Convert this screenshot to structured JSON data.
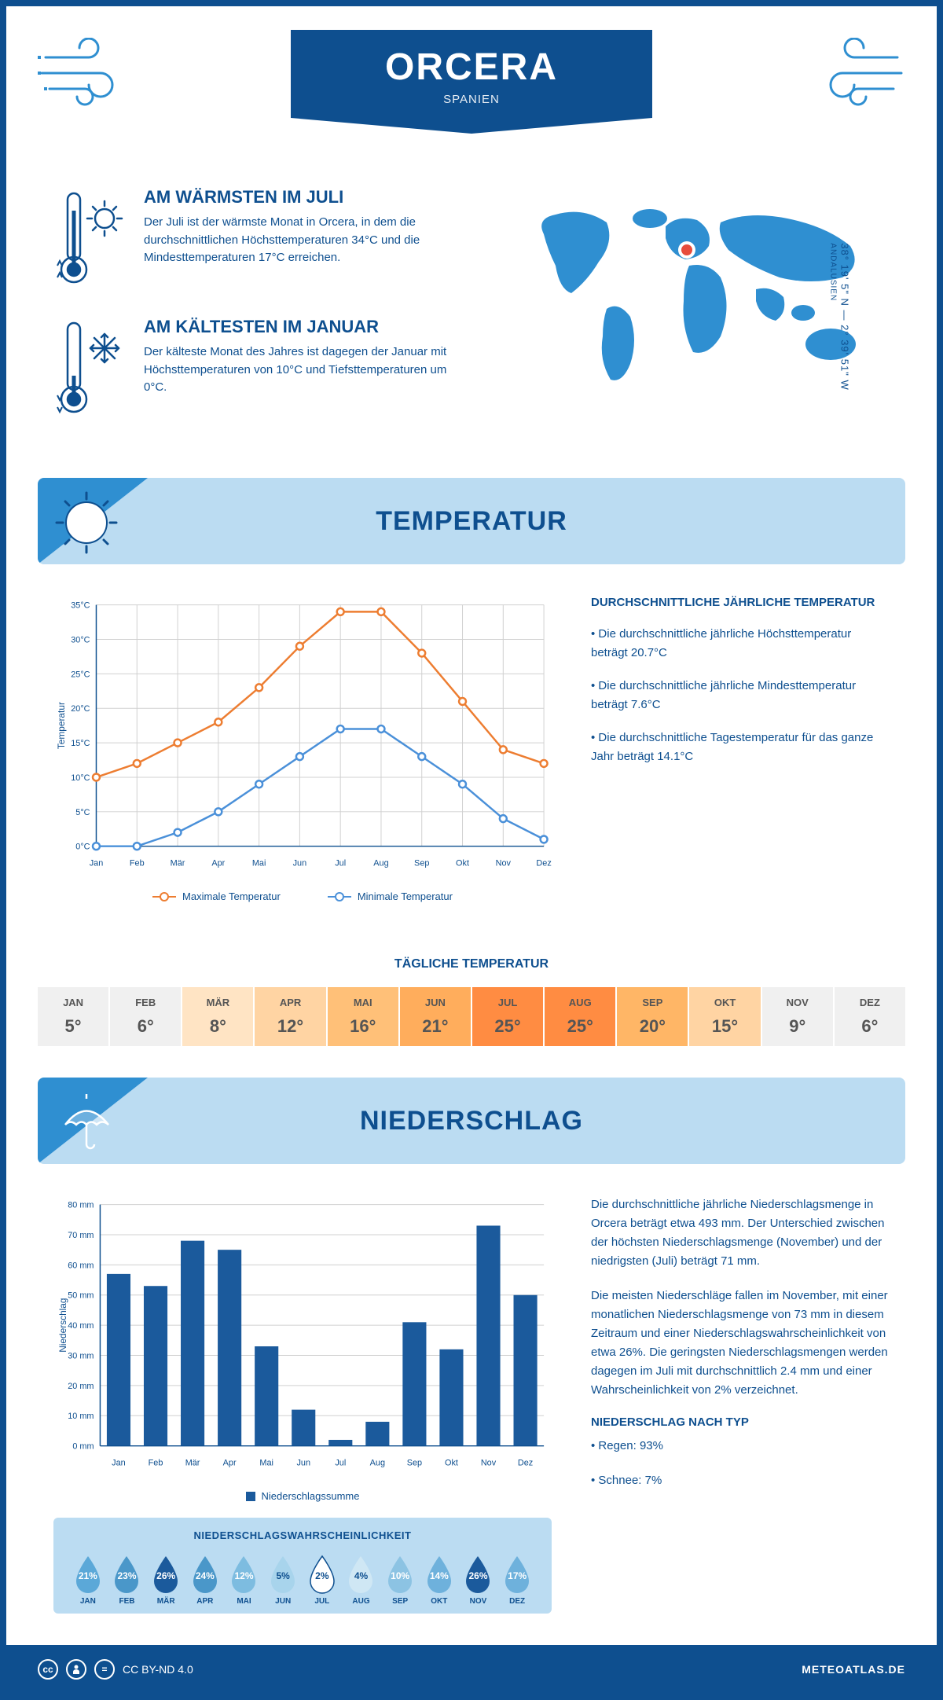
{
  "header": {
    "title": "ORCERA",
    "subtitle": "SPANIEN",
    "coords": "38° 19' 5\" N — 2° 39' 51\" W",
    "region": "ANDALUSIEN"
  },
  "colors": {
    "primary": "#0e4f8f",
    "light_blue": "#bbdcf2",
    "mid_blue": "#2f8fd1",
    "accent_red": "#e74c3c",
    "max_temp_line": "#ed7d31",
    "min_temp_line": "#4a90d9",
    "bar_fill": "#1b5a9c",
    "grid": "#d0d0d0"
  },
  "warm_block": {
    "title": "AM WÄRMSTEN IM JULI",
    "text": "Der Juli ist der wärmste Monat in Orcera, in dem die durchschnittlichen Höchsttemperaturen 34°C und die Mindesttemperaturen 17°C erreichen."
  },
  "cold_block": {
    "title": "AM KÄLTESTEN IM JANUAR",
    "text": "Der kälteste Monat des Jahres ist dagegen der Januar mit Höchsttemperaturen von 10°C und Tiefsttemperaturen um 0°C."
  },
  "temp_section": {
    "title": "TEMPERATUR",
    "right_title": "DURCHSCHNITTLICHE JÄHRLICHE TEMPERATUR",
    "bullets": [
      "• Die durchschnittliche jährliche Höchsttemperatur beträgt 20.7°C",
      "• Die durchschnittliche jährliche Mindesttemperatur beträgt 7.6°C",
      "• Die durchschnittliche Tagestemperatur für das ganze Jahr beträgt 14.1°C"
    ],
    "legend_max": "Maximale Temperatur",
    "legend_min": "Minimale Temperatur",
    "chart": {
      "type": "line",
      "months": [
        "Jan",
        "Feb",
        "Mär",
        "Apr",
        "Mai",
        "Jun",
        "Jul",
        "Aug",
        "Sep",
        "Okt",
        "Nov",
        "Dez"
      ],
      "max_temp": [
        10,
        12,
        15,
        18,
        23,
        29,
        34,
        34,
        28,
        21,
        14,
        12
      ],
      "min_temp": [
        0,
        0,
        2,
        5,
        9,
        13,
        17,
        17,
        13,
        9,
        4,
        1
      ],
      "ylim": [
        0,
        35
      ],
      "ytick_step": 5,
      "y_unit": "°C",
      "y_title": "Temperatur"
    }
  },
  "daily_temp": {
    "title": "TÄGLICHE TEMPERATUR",
    "months": [
      "JAN",
      "FEB",
      "MÄR",
      "APR",
      "MAI",
      "JUN",
      "JUL",
      "AUG",
      "SEP",
      "OKT",
      "NOV",
      "DEZ"
    ],
    "values": [
      "5°",
      "6°",
      "8°",
      "12°",
      "16°",
      "21°",
      "25°",
      "25°",
      "20°",
      "15°",
      "9°",
      "6°"
    ],
    "cell_colors": [
      "#f0f0f0",
      "#f0f0f0",
      "#ffe4c4",
      "#ffd4a3",
      "#ffc078",
      "#ffad5c",
      "#ff8c42",
      "#ff8c42",
      "#ffb666",
      "#ffd4a3",
      "#f0f0f0",
      "#f0f0f0"
    ]
  },
  "precip_section": {
    "title": "NIEDERSCHLAG",
    "chart": {
      "type": "bar",
      "months": [
        "Jan",
        "Feb",
        "Mär",
        "Apr",
        "Mai",
        "Jun",
        "Jul",
        "Aug",
        "Sep",
        "Okt",
        "Nov",
        "Dez"
      ],
      "values": [
        57,
        53,
        68,
        65,
        33,
        12,
        2,
        8,
        41,
        32,
        73,
        50
      ],
      "ylim": [
        0,
        80
      ],
      "ytick_step": 10,
      "y_unit": " mm",
      "y_title": "Niederschlag",
      "legend": "Niederschlagssumme"
    },
    "text1": "Die durchschnittliche jährliche Niederschlagsmenge in Orcera beträgt etwa 493 mm. Der Unterschied zwischen der höchsten Niederschlagsmenge (November) und der niedrigsten (Juli) beträgt 71 mm.",
    "text2": "Die meisten Niederschläge fallen im November, mit einer monatlichen Niederschlagsmenge von 73 mm in diesem Zeitraum und einer Niederschlagswahrscheinlichkeit von etwa 26%. Die geringsten Niederschlagsmengen werden dagegen im Juli mit durchschnittlich 2.4 mm und einer Wahrscheinlichkeit von 2% verzeichnet.",
    "type_title": "NIEDERSCHLAG NACH TYP",
    "type_rain": "• Regen: 93%",
    "type_snow": "• Schnee: 7%"
  },
  "prob": {
    "title": "NIEDERSCHLAGSWAHRSCHEINLICHKEIT",
    "months": [
      "JAN",
      "FEB",
      "MÄR",
      "APR",
      "MAI",
      "JUN",
      "JUL",
      "AUG",
      "SEP",
      "OKT",
      "NOV",
      "DEZ"
    ],
    "pct": [
      "21%",
      "23%",
      "26%",
      "24%",
      "12%",
      "5%",
      "2%",
      "4%",
      "10%",
      "14%",
      "26%",
      "17%"
    ],
    "drop_colors": [
      "#5ba8d8",
      "#4a97c9",
      "#1b5a9c",
      "#4a97c9",
      "#7dbce0",
      "#a8d4ec",
      "#ffffff",
      "#cfe7f4",
      "#8cc3e3",
      "#6eb1dc",
      "#1b5a9c",
      "#6eb1dc"
    ],
    "text_colors": [
      "#fff",
      "#fff",
      "#fff",
      "#fff",
      "#fff",
      "#0e4f8f",
      "#0e4f8f",
      "#0e4f8f",
      "#fff",
      "#fff",
      "#fff",
      "#fff"
    ]
  },
  "footer": {
    "license": "CC BY-ND 4.0",
    "brand": "METEOATLAS.DE"
  }
}
